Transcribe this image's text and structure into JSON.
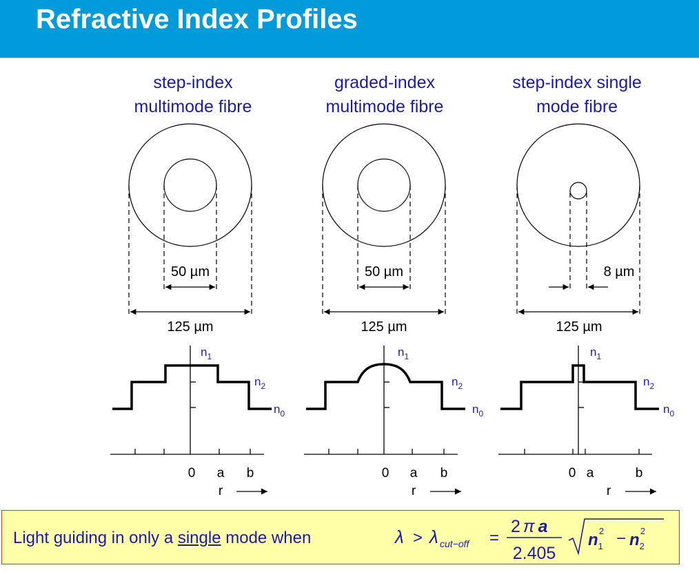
{
  "title": "Refractive Index Profiles",
  "columns": [
    {
      "caption": [
        "step-index",
        "multimode fibre"
      ],
      "core_diameter": "50 µm",
      "cladding_diameter": "125 µm"
    },
    {
      "caption": [
        "graded-index",
        "multimode fibre"
      ],
      "core_diameter": "50 µm",
      "cladding_diameter": "125 µm"
    },
    {
      "caption": [
        "step-index single",
        "mode fibre"
      ],
      "core_diameter": "8 µm",
      "cladding_diameter": "125 µm"
    }
  ],
  "profile_labels": {
    "n1": "n",
    "n1_sub": "1",
    "n2": "n",
    "n2_sub": "2",
    "n0": "n",
    "n0_sub": "0"
  },
  "axis_labels": {
    "zero": "0",
    "a": "a",
    "b": "b",
    "r": "r"
  },
  "note": {
    "before": "Light guiding in only a ",
    "underlined": "single",
    "after": " mode when"
  },
  "formula": {
    "lambda": "λ",
    "gt": ">",
    "lambda_sub": "cut−off",
    "eq": "=",
    "numerator": "2",
    "pi": "π",
    "a": "a",
    "denominator": "2.405",
    "n1": "n",
    "n1_sub": "1",
    "sup1": "2",
    "minus": "−",
    "n2": "n",
    "n2_sub": "2",
    "sup2": "2"
  },
  "colors": {
    "title_bar": "#009bd8",
    "caption_text": "#1c1ca0",
    "note_bg": "#ffffa8",
    "note_border": "#e03030"
  }
}
